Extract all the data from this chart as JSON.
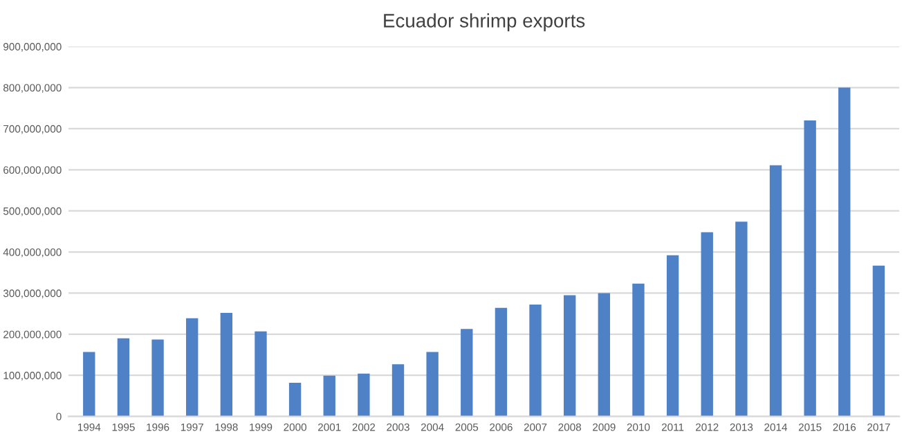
{
  "chart_data": {
    "type": "bar",
    "title": "Ecuador shrimp exports",
    "categories": [
      "1994",
      "1995",
      "1996",
      "1997",
      "1998",
      "1999",
      "2000",
      "2001",
      "2002",
      "2003",
      "2004",
      "2005",
      "2006",
      "2007",
      "2008",
      "2009",
      "2010",
      "2011",
      "2012",
      "2013",
      "2014",
      "2015",
      "2016",
      "2017"
    ],
    "values": [
      157000000,
      190000000,
      187000000,
      239000000,
      252000000,
      207000000,
      82000000,
      99000000,
      104000000,
      127000000,
      157000000,
      213000000,
      264000000,
      272000000,
      295000000,
      300000000,
      323000000,
      392000000,
      448000000,
      474000000,
      611000000,
      720000000,
      800000000,
      367000000
    ],
    "color": "#4f81c7",
    "ylim": [
      0,
      900000000
    ],
    "yticks": [
      {
        "value": 0,
        "label": "0"
      },
      {
        "value": 100000000,
        "label": "100,000,000"
      },
      {
        "value": 200000000,
        "label": "200,000,000"
      },
      {
        "value": 300000000,
        "label": "300,000,000"
      },
      {
        "value": 400000000,
        "label": "400,000,000"
      },
      {
        "value": 500000000,
        "label": "500,000,000"
      },
      {
        "value": 600000000,
        "label": "600,000,000"
      },
      {
        "value": 700000000,
        "label": "700,000,000"
      },
      {
        "value": 800000000,
        "label": "800,000,000"
      },
      {
        "value": 900000000,
        "label": "900,000,000"
      }
    ],
    "grid": "y"
  }
}
